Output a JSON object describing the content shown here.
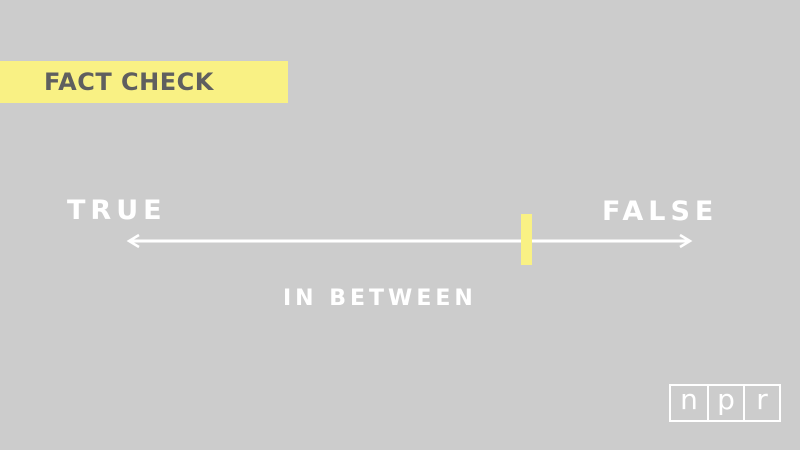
{
  "badge": {
    "text": "FACT CHECK"
  },
  "scale": {
    "left_label": "TRUE",
    "right_label": "FALSE",
    "center_label": "IN BETWEEN",
    "marker_position_fraction": 0.71
  },
  "logo": {
    "letters": [
      "n",
      "p",
      "r"
    ]
  },
  "colors": {
    "background": "#cccccc",
    "highlight_yellow": "#f9f184",
    "badge_text": "#5f5f5f",
    "foreground_white": "#ffffff"
  },
  "icons": {
    "left_arrow": "arrow-left-icon",
    "right_arrow": "arrow-right-icon"
  }
}
